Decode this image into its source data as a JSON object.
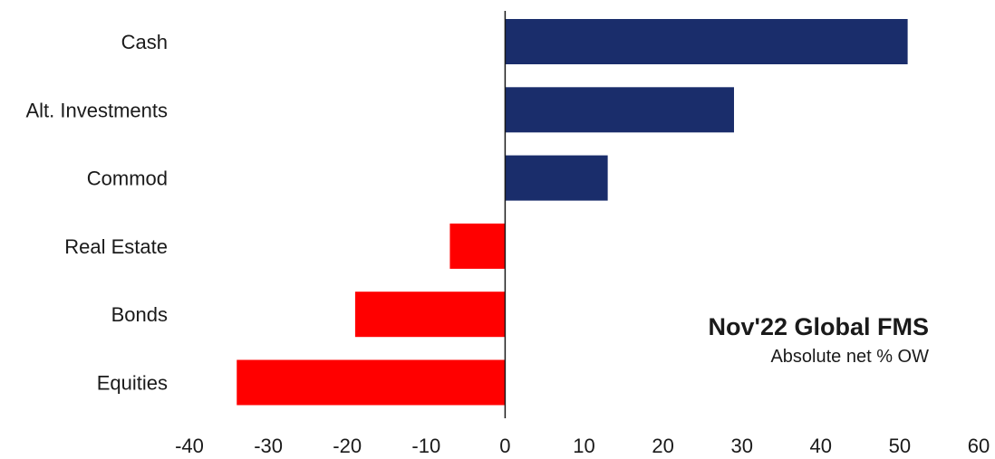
{
  "chart_data": {
    "type": "bar",
    "orientation": "horizontal",
    "title": "Nov'22 Global FMS",
    "subtitle": "Absolute net % OW",
    "categories": [
      "Cash",
      "Alt. Investments",
      "Commod",
      "Real Estate",
      "Bonds",
      "Equities"
    ],
    "values": [
      51,
      29,
      13,
      -7,
      -19,
      -34
    ],
    "xlim": [
      -40,
      60
    ],
    "xticks": [
      "-40",
      "-30",
      "-20",
      "-10",
      "0",
      "10",
      "20",
      "30",
      "40",
      "50",
      "60"
    ],
    "grid": false,
    "legend": "none",
    "colors": {
      "positive": "#1a2d6b",
      "negative": "#ff0000",
      "axis": "#1a1a1a"
    }
  }
}
